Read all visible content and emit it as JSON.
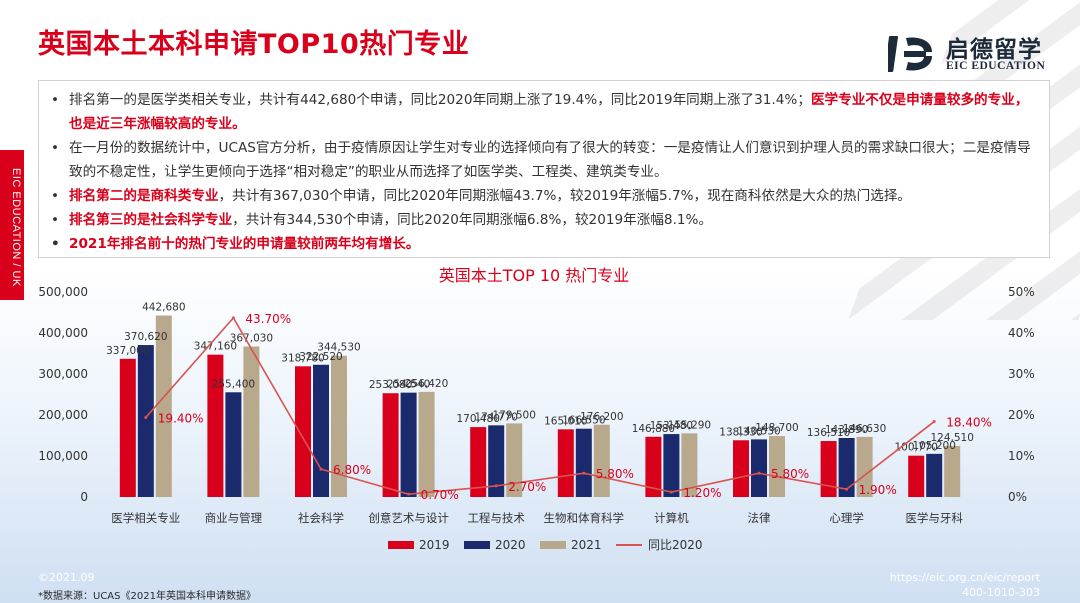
{
  "page": {
    "title": "英国本土本科申请TOP10热门专业",
    "side_label": "EIC EDUCATION / UK",
    "accent_color": "#d9001b"
  },
  "logo": {
    "name_cn": "启德留学",
    "name_en": "EIC EDUCATION",
    "icon": "eic-logo-icon"
  },
  "notes": {
    "b1_text": "排名第一的是医学类相关专业，共计有442,680个申请，同比2020年同期上涨了19.4%，同比2019年同期上涨了31.4%；",
    "b1_highlight": "医学专业不仅是申请量较多的专业，也是近三年涨幅较高的专业。",
    "b2_text": "在一月份的数据统计中，UCAS官方分析，由于疫情原因让学生对专业的选择倾向有了很大的转变：一是疫情让人们意识到护理人员的需求缺口很大；二是疫情导致的不稳定性，让学生更倾向于选择“相对稳定”的职业从而选择了如医学类、工程类、建筑类专业。",
    "b3_highlight": "排名第二的是商科类专业",
    "b3_text": "，共计有367,030个申请，同比2020年同期涨幅43.7%，较2019年涨幅5.7%，现在商科依然是大众的热门选择。",
    "b4_highlight": "排名第三的是社会科学专业",
    "b4_text": "，共计有344,530个申请，同比2020年同期涨幅6.8%，较2019年涨幅8.1%。",
    "b5_text": "2021年排名前十的热门专业的申请量较前两年均有增长。"
  },
  "chart_data": {
    "type": "bar",
    "title": "英国本土TOP 10 热门专业",
    "categories": [
      "医学相关专业",
      "商业与管理",
      "社会科学",
      "创意艺术与设计",
      "工程与技术",
      "生物和体育科学",
      "计算机",
      "法律",
      "心理学",
      "医学与牙科"
    ],
    "series": [
      {
        "name": "2019",
        "color": "#d9001b",
        "values": [
          337000,
          347160,
          318780,
          253080,
          170480,
          165010,
          146880,
          138330,
          136510,
          100770
        ],
        "value_labels": [
          "337,000",
          "347,160",
          "318,780",
          "253,080",
          "170,480",
          "165,010",
          "146,880",
          "138,330",
          "136,510",
          "100,770"
        ]
      },
      {
        "name": "2020",
        "color": "#1a2a6c",
        "values": [
          370620,
          255400,
          322520,
          254540,
          174770,
          166550,
          153480,
          140530,
          143890,
          105200
        ],
        "value_labels": [
          "370,620",
          "255,400",
          "322,520",
          "254,540",
          "174,770",
          "166,550",
          "153,480",
          "140,530",
          "143,890",
          "105,200"
        ]
      },
      {
        "name": "2021",
        "color": "#b8a88c",
        "values": [
          442680,
          367030,
          344530,
          256420,
          179500,
          176200,
          155290,
          148700,
          146630,
          124510
        ],
        "value_labels": [
          "442,680",
          "367,030",
          "344,530",
          "256,420",
          "179,500",
          "176,200",
          "155,290",
          "148,700",
          "146,630",
          "124,510"
        ]
      },
      {
        "name": "同比2020",
        "type": "line",
        "axis": "right",
        "color": "#d9534f",
        "values": [
          19.4,
          43.7,
          6.8,
          0.7,
          2.7,
          5.8,
          1.2,
          5.8,
          1.9,
          18.4
        ],
        "value_labels": [
          "19.40%",
          "43.70%",
          "6.80%",
          "0.70%",
          "2.70%",
          "5.80%",
          "1.20%",
          "5.80%",
          "1.90%",
          "18.40%"
        ]
      }
    ],
    "ylim": [
      0,
      500000
    ],
    "y_ticks": [
      "0",
      "100,000",
      "200,000",
      "300,000",
      "400,000",
      "500,000"
    ],
    "y2lim": [
      0,
      50
    ],
    "y2_ticks": [
      "0%",
      "10%",
      "20%",
      "30%",
      "40%",
      "50%"
    ],
    "grid": false,
    "legend_position": "bottom"
  },
  "footer": {
    "date": "©2021.09",
    "source": "*数据来源：UCAS《2021年英国本科申请数据》",
    "url": "https://eic.org.cn/eic/report",
    "phone": "400-1010-303"
  }
}
